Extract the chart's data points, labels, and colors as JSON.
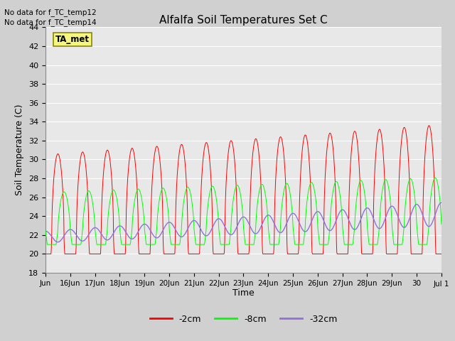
{
  "title": "Alfalfa Soil Temperatures Set C",
  "xlabel": "Time",
  "ylabel": "Soil Temperature (C)",
  "ylim": [
    18,
    44
  ],
  "no_data_text": [
    "No data for f_TC_temp12",
    "No data for f_TC_temp14"
  ],
  "legend_label": "TA_met",
  "line_labels": [
    "-2cm",
    "-8cm",
    "-32cm"
  ],
  "line_colors": [
    "red",
    "lime",
    "mediumpurple"
  ],
  "fig_facecolor": "#d0d0d0",
  "plot_facecolor": "#e8e8e8",
  "grid_color": "#ffffff"
}
